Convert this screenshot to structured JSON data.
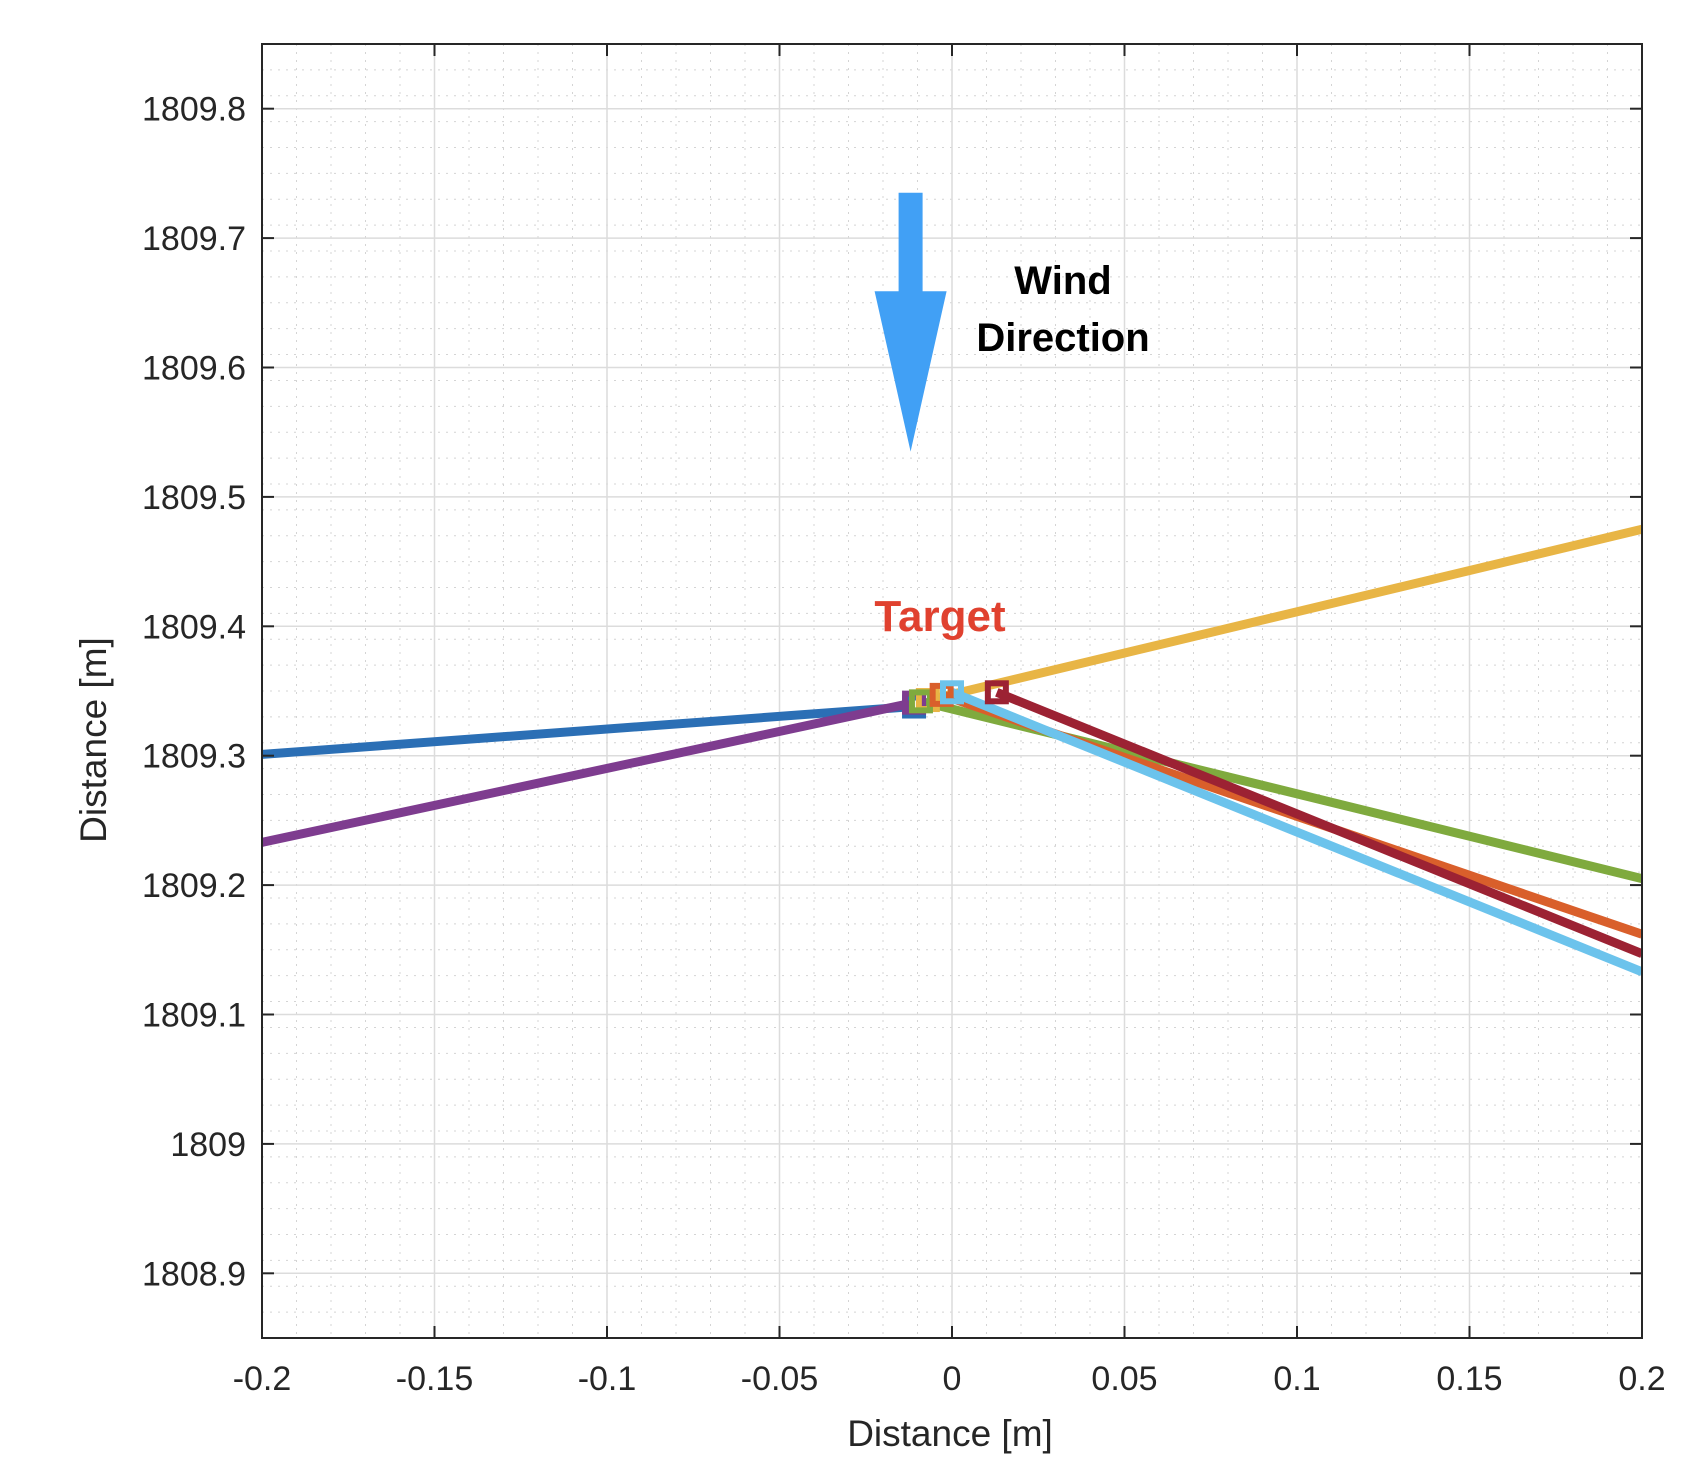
{
  "chart_data": {
    "type": "line",
    "title": "",
    "xlabel": "Distance [m]",
    "ylabel": "Distance [m]",
    "xlim": [
      -0.2,
      0.2
    ],
    "ylim": [
      1808.85,
      1809.85
    ],
    "xticks": [
      -0.2,
      -0.15,
      -0.1,
      -0.05,
      0,
      0.05,
      0.1,
      0.15,
      0.2
    ],
    "xtick_labels": [
      "-0.2",
      "-0.15",
      "-0.1",
      "-0.05",
      "0",
      "0.05",
      "0.1",
      "0.15",
      "0.2"
    ],
    "yticks": [
      1808.9,
      1809,
      1809.1,
      1809.2,
      1809.3,
      1809.4,
      1809.5,
      1809.6,
      1809.7,
      1809.8
    ],
    "ytick_labels": [
      "1808.9",
      "1809",
      "1809.1",
      "1809.2",
      "1809.3",
      "1809.4",
      "1809.5",
      "1809.6",
      "1809.7",
      "1809.8"
    ],
    "grid": true,
    "minor_grid": true,
    "legend": "none",
    "series": [
      {
        "color": "#2b6fb5",
        "marker": "square",
        "points": [
          [
            -0.2,
            1809.301
          ],
          [
            -0.011,
            1809.338
          ]
        ]
      },
      {
        "color": "#7e3c8f",
        "marker": "square",
        "points": [
          [
            -0.2,
            1809.233
          ],
          [
            -0.011,
            1809.341
          ]
        ]
      },
      {
        "color": "#e8b545",
        "marker": "square",
        "points": [
          [
            -0.007,
            1809.343
          ],
          [
            0.2,
            1809.475
          ]
        ]
      },
      {
        "color": "#7faa3e",
        "marker": "square",
        "points": [
          [
            -0.009,
            1809.342
          ],
          [
            0.2,
            1809.205
          ]
        ]
      },
      {
        "color": "#d95f2b",
        "marker": "square",
        "points": [
          [
            -0.003,
            1809.347
          ],
          [
            0.2,
            1809.162
          ]
        ]
      },
      {
        "color": "#6cc3ec",
        "marker": "square",
        "points": [
          [
            0.0,
            1809.349
          ],
          [
            0.2,
            1809.133
          ]
        ]
      },
      {
        "color": "#9c2233",
        "marker": "square",
        "points": [
          [
            0.013,
            1809.349
          ],
          [
            0.2,
            1809.147
          ]
        ]
      }
    ],
    "annotations": {
      "wind_line1": "Wind",
      "wind_line2": "Direction",
      "wind_arrow_color": "#41a0f5",
      "wind_arrow": {
        "x": -0.012,
        "y_start": 1809.735,
        "y_end": 1809.535
      },
      "target": "Target",
      "target_color": "#e0412f"
    }
  }
}
